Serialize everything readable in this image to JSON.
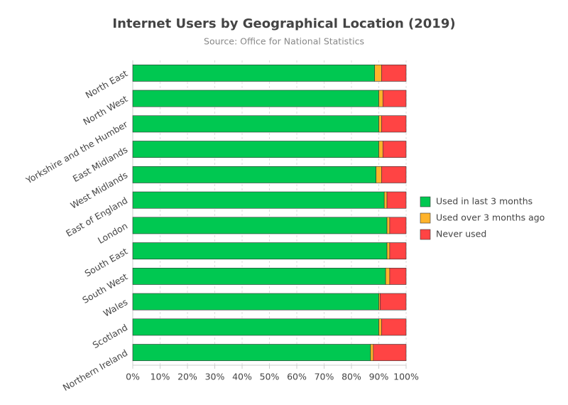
{
  "chart_data": {
    "type": "stacked-bar-horizontal",
    "title": "Internet Users by Geographical Location (2019)",
    "subtitle": "Source: Office for National Statistics",
    "categories": [
      "North East",
      "North West",
      "Yorkshire and the Humber",
      "East Midlands",
      "West Midlands",
      "East of England",
      "London",
      "South East",
      "South West",
      "Wales",
      "Scotland",
      "Northern Ireland"
    ],
    "series": [
      {
        "name": "Used in last 3 months",
        "color": "#00c851",
        "values": [
          88.5,
          90,
          90,
          90,
          89,
          92,
          93,
          93,
          92.5,
          90,
          90,
          87
        ]
      },
      {
        "name": "Used over 3 months ago",
        "color": "#ffb32b",
        "values": [
          2.5,
          1.5,
          1,
          1.5,
          2,
          1,
          1,
          1,
          1.5,
          0.5,
          1,
          1
        ]
      },
      {
        "name": "Never used",
        "color": "#ff4444",
        "values": [
          9,
          8.5,
          9,
          8.5,
          9,
          7,
          6,
          6,
          6,
          9.5,
          9,
          12
        ]
      }
    ],
    "xlim": [
      0,
      100
    ],
    "xticks": [
      {
        "value": 0,
        "label": "0%"
      },
      {
        "value": 10,
        "label": "10%"
      },
      {
        "value": 20,
        "label": "20%"
      },
      {
        "value": 30,
        "label": "30%"
      },
      {
        "value": 40,
        "label": "40%"
      },
      {
        "value": 50,
        "label": "50%"
      },
      {
        "value": 60,
        "label": "60%"
      },
      {
        "value": 70,
        "label": "70%"
      },
      {
        "value": 80,
        "label": "80%"
      },
      {
        "value": 90,
        "label": "90%"
      },
      {
        "value": 100,
        "label": "100%"
      }
    ],
    "grid": true,
    "legend": "right"
  }
}
